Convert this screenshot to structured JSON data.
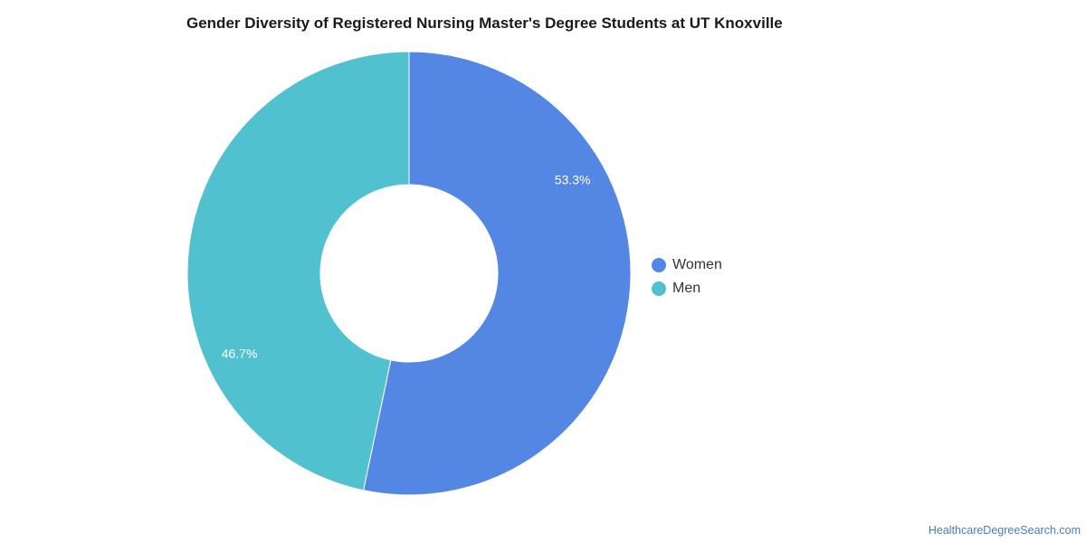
{
  "chart_data": {
    "type": "pie",
    "title": "Gender Diversity of Registered Nursing Master's Degree Students at UT Knoxville",
    "series": [
      {
        "name": "Women",
        "value": 53.3,
        "label": "53.3%",
        "color": "#5486e3"
      },
      {
        "name": "Men",
        "value": 46.7,
        "label": "46.7%",
        "color": "#52c1cf"
      }
    ],
    "legend_position": "right",
    "donut": true
  },
  "credit": "HealthcareDegreeSearch.com"
}
